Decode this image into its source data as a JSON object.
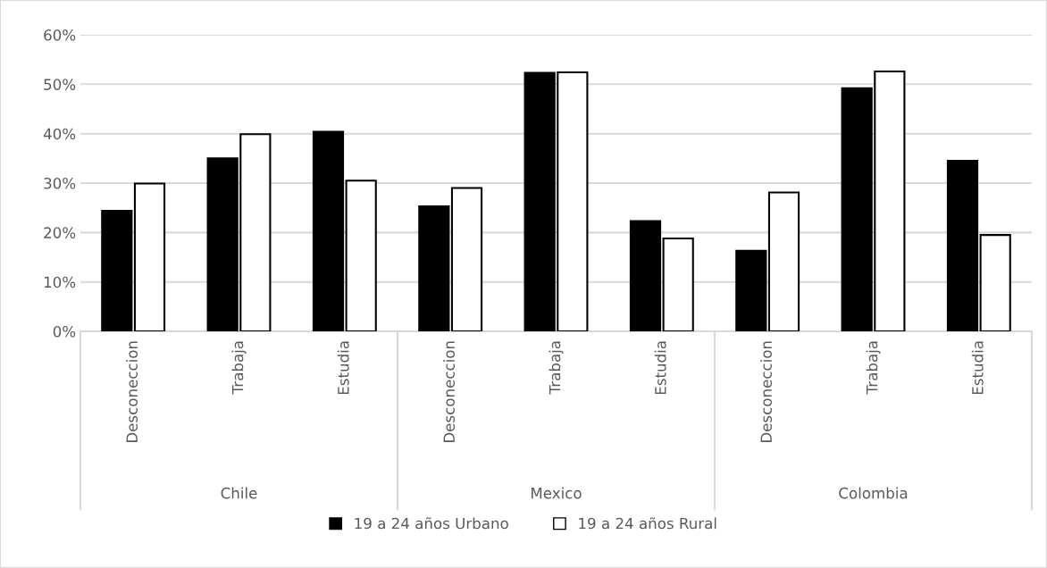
{
  "chart_data": {
    "type": "bar",
    "categories": [
      "Desconeccion",
      "Trabaja",
      "Estudia",
      "Desconeccion",
      "Trabaja",
      "Estudia",
      "Desconeccion",
      "Trabaja",
      "Estudia"
    ],
    "series": [
      {
        "name": "19 a 24 años Urbano",
        "color": "#000000",
        "values": [
          24.4,
          35.0,
          40.4,
          25.3,
          52.3,
          22.3,
          16.3,
          49.2,
          34.5
        ]
      },
      {
        "name": "19 a 24 años Rural",
        "color": "#ffffff",
        "values": [
          29.9,
          39.9,
          30.5,
          29.0,
          52.4,
          18.8,
          28.1,
          52.6,
          19.5
        ]
      }
    ],
    "annotations": [
      "Chile",
      "Mexico",
      "Colombia"
    ],
    "ylim": [
      0,
      60
    ],
    "yticks": [
      {
        "value": 0,
        "label": "0%"
      },
      {
        "value": 10,
        "label": "10%"
      },
      {
        "value": 20,
        "label": "20%"
      },
      {
        "value": 30,
        "label": "30%"
      },
      {
        "value": 40,
        "label": "40%"
      },
      {
        "value": 50,
        "label": "50%"
      },
      {
        "value": 60,
        "label": "60%"
      }
    ],
    "grid": "y",
    "legend": "bottom"
  }
}
